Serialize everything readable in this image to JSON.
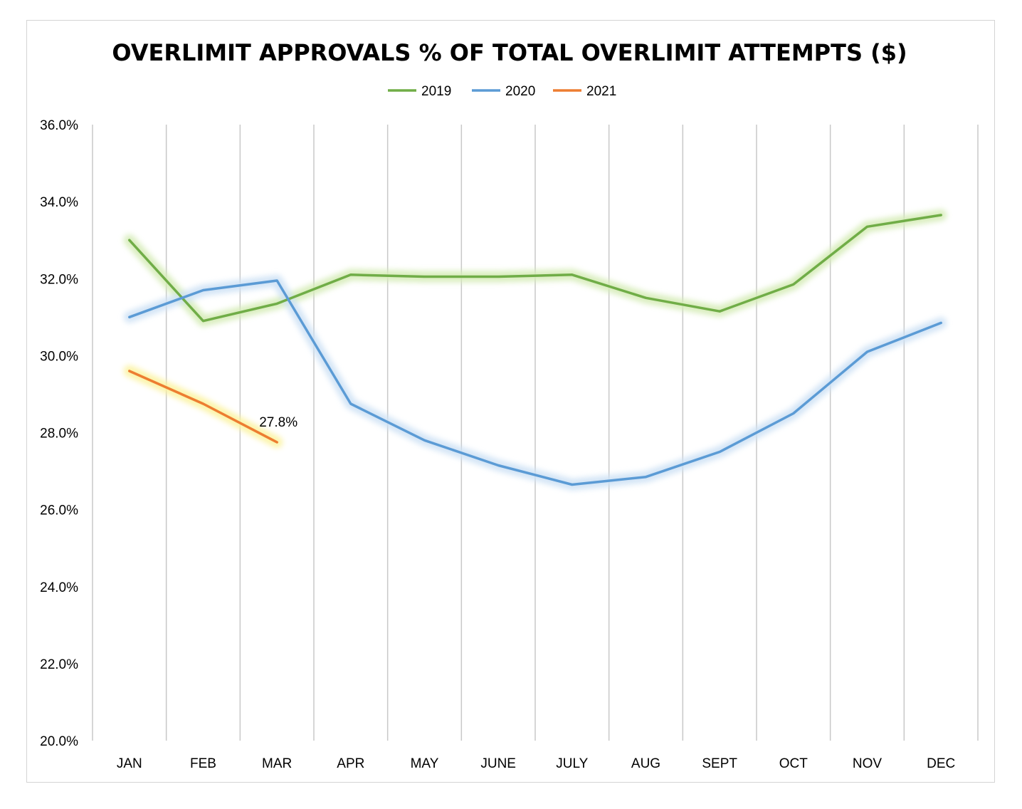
{
  "chart_data": {
    "type": "line",
    "title": "OVERLIMIT APPROVALS % OF TOTAL OVERLIMIT ATTEMPTS ($)",
    "xlabel": "",
    "ylabel": "",
    "ylim": [
      20,
      36
    ],
    "yticks": [
      20,
      22,
      24,
      26,
      28,
      30,
      32,
      34,
      36
    ],
    "ytick_labels": [
      "20.0%",
      "22.0%",
      "24.0%",
      "26.0%",
      "28.0%",
      "30.0%",
      "32.0%",
      "34.0%",
      "36.0%"
    ],
    "categories": [
      "JAN",
      "FEB",
      "MAR",
      "APR",
      "MAY",
      "JUNE",
      "JULY",
      "AUG",
      "SEPT",
      "OCT",
      "NOV",
      "DEC"
    ],
    "grid": "vertical",
    "legend_position": "top-center",
    "series": [
      {
        "name": "2019",
        "color": "#70AD47",
        "glow": "#d6ecb8",
        "values": [
          33.0,
          30.9,
          31.35,
          32.1,
          32.05,
          32.05,
          32.1,
          31.5,
          31.15,
          31.85,
          33.35,
          33.65
        ]
      },
      {
        "name": "2020",
        "color": "#5B9BD5",
        "glow": "#cfe2f5",
        "values": [
          31.0,
          31.7,
          31.95,
          28.75,
          27.8,
          27.15,
          26.65,
          26.85,
          27.5,
          28.5,
          30.1,
          30.85
        ]
      },
      {
        "name": "2021",
        "color": "#ED7D31",
        "glow": "#fbf3a0",
        "values": [
          29.6,
          28.75,
          27.75,
          null,
          null,
          null,
          null,
          null,
          null,
          null,
          null,
          null
        ]
      }
    ],
    "annotations": [
      {
        "series": "2021",
        "category": "MAR",
        "text": "27.8%"
      }
    ]
  }
}
